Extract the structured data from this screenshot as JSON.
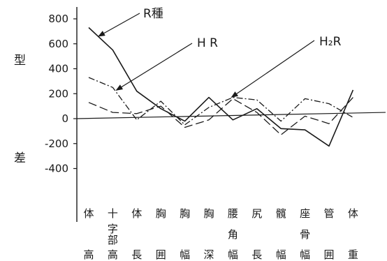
{
  "chart_data": {
    "type": "line",
    "ylabel_top": "型",
    "ylabel_bottom": "差",
    "ylim": [
      -400,
      800
    ],
    "yticks": [
      "800",
      "600",
      "400",
      "200",
      "0",
      "-200",
      "-400"
    ],
    "ytick_values": [
      800,
      600,
      400,
      200,
      0,
      -200,
      -400
    ],
    "categories": [
      [
        "体",
        "高"
      ],
      [
        "十",
        "字",
        "部",
        "高"
      ],
      [
        "体",
        "長"
      ],
      [
        "胸",
        "囲"
      ],
      [
        "胸",
        "幅"
      ],
      [
        "胸",
        "深"
      ],
      [
        "腰",
        "角",
        "幅"
      ],
      [
        "尻",
        "長"
      ],
      [
        "髖",
        "幅"
      ],
      [
        "座",
        "骨",
        "幅"
      ],
      [
        "管",
        "囲"
      ],
      [
        "体",
        "重"
      ]
    ],
    "series": [
      {
        "name": "R種",
        "style": "solid",
        "color": "#1a1a1a",
        "values": [
          730,
          550,
          220,
          80,
          -20,
          170,
          -10,
          80,
          -80,
          -90,
          -220,
          230
        ]
      },
      {
        "name": "HR",
        "style": "dashdot",
        "color": "#1a1a1a",
        "values": [
          330,
          250,
          -10,
          140,
          -50,
          90,
          170,
          150,
          -20,
          160,
          120,
          10
        ]
      },
      {
        "name": "H₂R",
        "style": "longdash",
        "color": "#1a1a1a",
        "values": [
          130,
          50,
          40,
          100,
          -70,
          -10,
          160,
          50,
          -130,
          20,
          -40,
          170
        ]
      }
    ],
    "reference_line": {
      "from": 0,
      "to": 50
    },
    "annotations": [
      {
        "text": "R種",
        "series": 0,
        "point": 0
      },
      {
        "text": "H R",
        "series": 1,
        "point": 1
      },
      {
        "text": "H₂R",
        "series": 2,
        "point": 6
      }
    ]
  }
}
